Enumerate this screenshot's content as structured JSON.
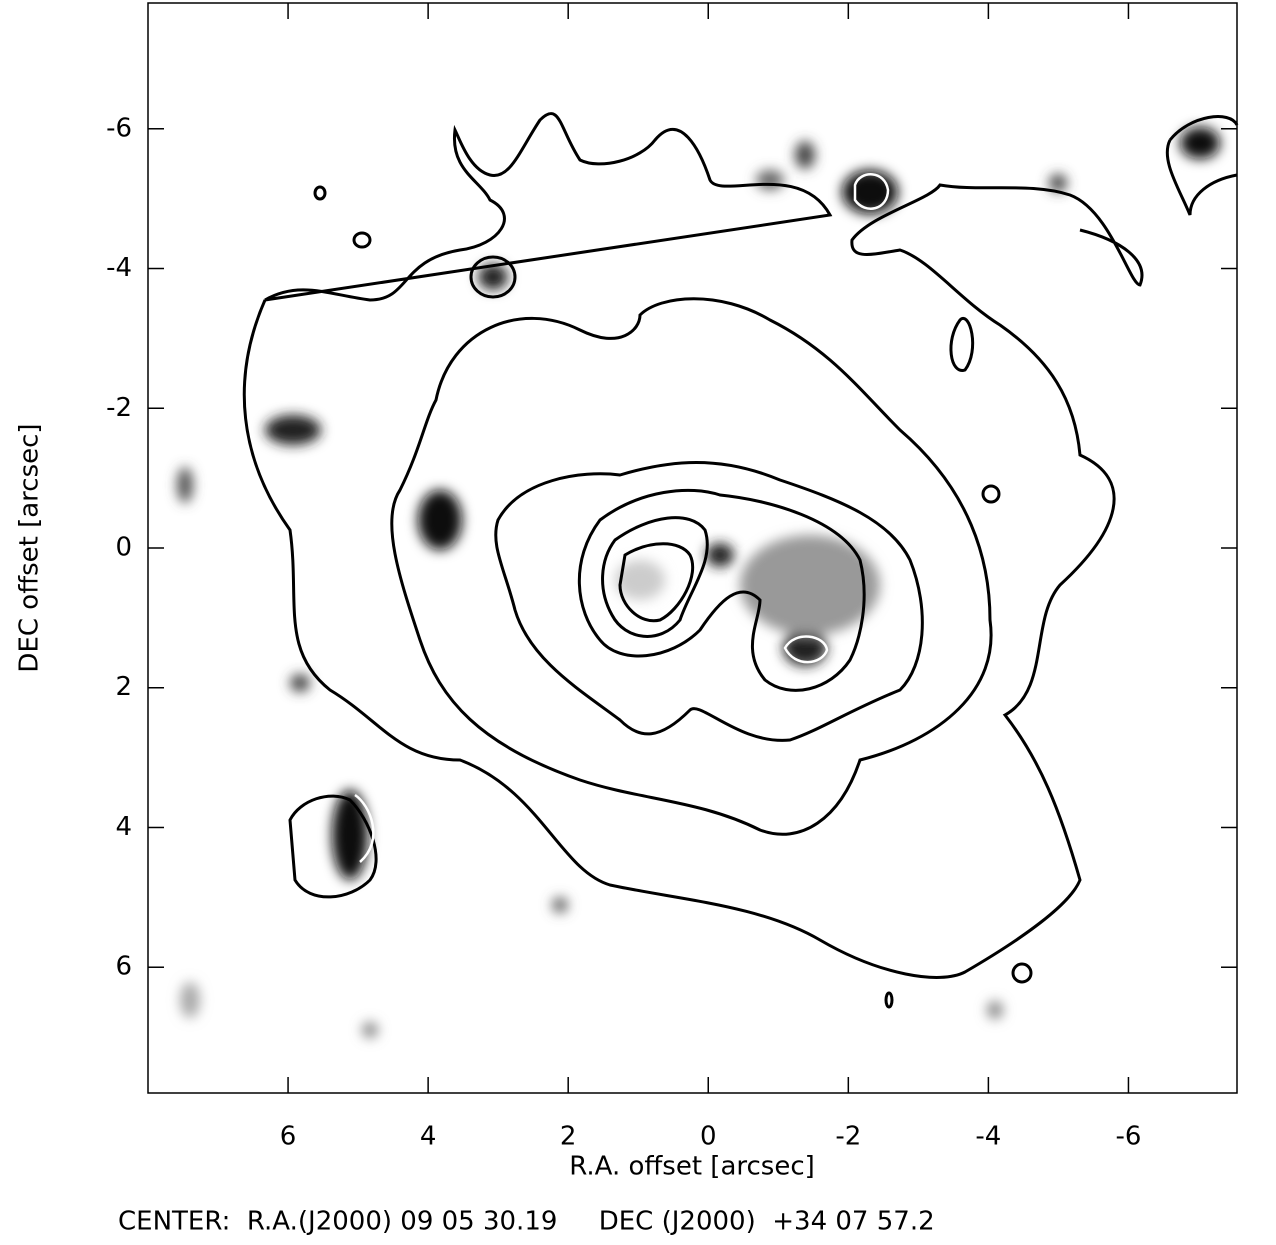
{
  "chart_data": {
    "type": "contour",
    "x_label": "R.A. offset [arcsec]",
    "y_label": "DEC offset [arcsec]",
    "footer": "CENTER:  R.A.(J2000) 09 05 30.19     DEC (J2000)  +34 07 57.2",
    "xlim": [
      8.0,
      -7.55
    ],
    "ylim": [
      -7.8,
      7.8
    ],
    "xticks": [
      6,
      4,
      2,
      0,
      -2,
      -4,
      -6
    ],
    "yticks": [
      -6,
      -4,
      -2,
      0,
      2,
      4,
      6
    ]
  }
}
